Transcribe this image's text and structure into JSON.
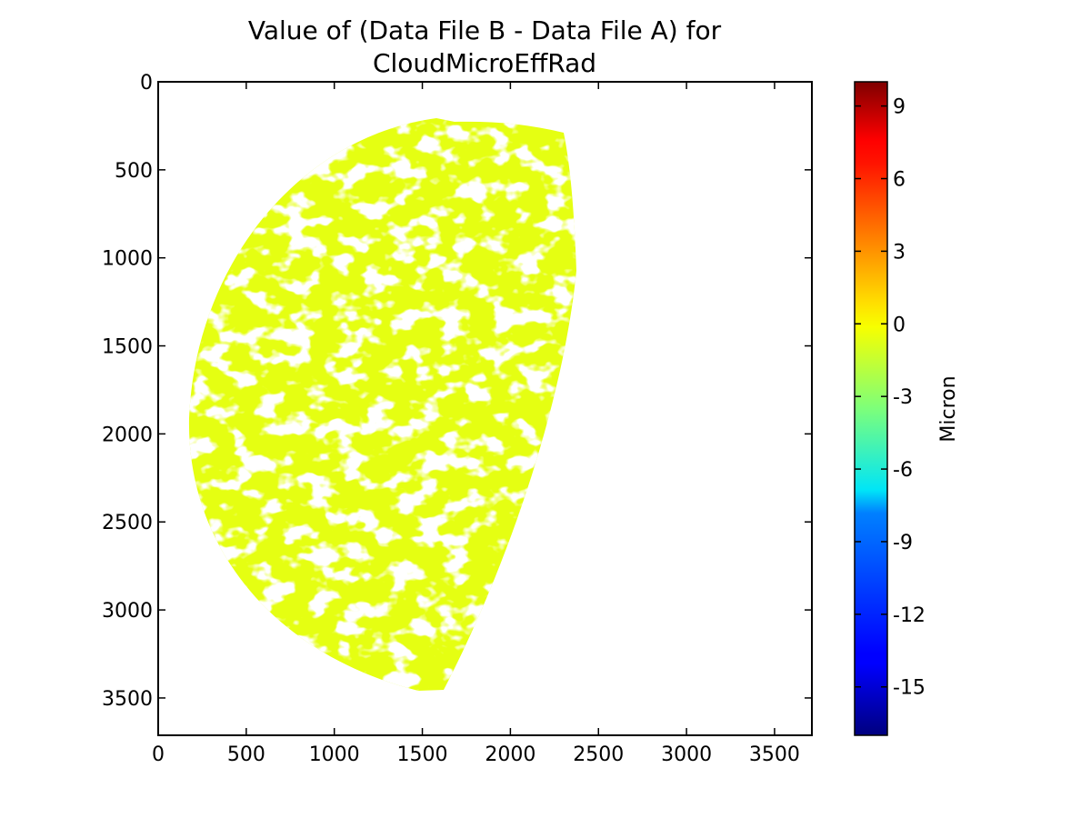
{
  "chart_data": {
    "type": "heatmap",
    "title": [
      "Value of (Data File B - Data File A) for",
      "CloudMicroEffRad"
    ],
    "xlabel": "",
    "ylabel": "",
    "xlim": [
      0,
      3712
    ],
    "ylim": [
      3712,
      0
    ],
    "x_ticks": [
      0,
      500,
      1000,
      1500,
      2000,
      2500,
      3000,
      3500
    ],
    "y_ticks": [
      0,
      500,
      1000,
      1500,
      2000,
      2500,
      3000,
      3500
    ],
    "x_tick_labels": [
      "0",
      "500",
      "1000",
      "1500",
      "2000",
      "2500",
      "3000",
      "3500"
    ],
    "y_tick_labels": [
      "0",
      "500",
      "1000",
      "1500",
      "2000",
      "2500",
      "3000",
      "3500"
    ],
    "grid": false,
    "data_description_value": 0,
    "data_color": "#e5ff12",
    "missing_color": "#ffffff",
    "colorbar": {
      "label": "Micron",
      "min": -17,
      "max": 10,
      "ticks": [
        9,
        6,
        3,
        0,
        -3,
        -6,
        -9,
        -12,
        -15
      ],
      "tick_labels": [
        "9",
        "6",
        "3",
        "0",
        "-3",
        "-6",
        "-9",
        "-12",
        "-15"
      ],
      "colormap": "jet"
    }
  }
}
